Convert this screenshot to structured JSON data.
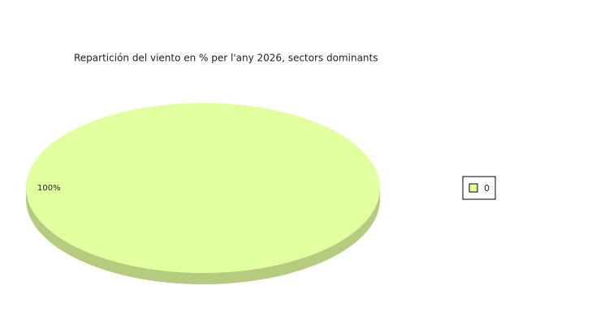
{
  "chart_data": {
    "type": "pie",
    "title": "Repartición del viento en % per l'any 2026, sectors dominants",
    "categories": [
      "0"
    ],
    "values": [
      100
    ],
    "value_labels": [
      "100%"
    ],
    "colors": [
      "#e2ffa0"
    ],
    "legend": "right"
  }
}
